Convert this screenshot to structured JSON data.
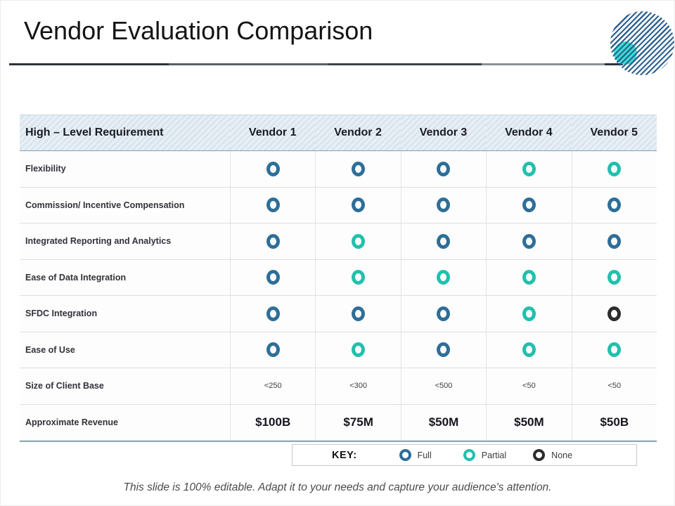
{
  "slide": {
    "title": "Vendor Evaluation Comparison",
    "footer": "This slide is 100% editable. Adapt it to your needs and capture your audience's attention."
  },
  "colors": {
    "full": "#2e6e99",
    "partial": "#21c0ad",
    "none": "#2d2d2d",
    "accent_stripe_blue": "#2e6190",
    "accent_teal": "#37e0d3",
    "header_bg": "#dde8f0"
  },
  "table": {
    "header": [
      "High – Level Requirement",
      "Vendor 1",
      "Vendor 2",
      "Vendor 3",
      "Vendor 4",
      "Vendor 5"
    ],
    "rows": [
      {
        "label": "Flexibility",
        "type": "rating",
        "values": [
          "full",
          "full",
          "full",
          "partial",
          "partial"
        ]
      },
      {
        "label": "Commission/ Incentive Compensation",
        "type": "rating",
        "values": [
          "full",
          "full",
          "full",
          "full",
          "full"
        ]
      },
      {
        "label": "Integrated Reporting and Analytics",
        "type": "rating",
        "values": [
          "full",
          "partial",
          "full",
          "full",
          "full"
        ]
      },
      {
        "label": "Ease of Data Integration",
        "type": "rating",
        "values": [
          "full",
          "partial",
          "partial",
          "partial",
          "partial"
        ]
      },
      {
        "label": "SFDC Integration",
        "type": "rating",
        "values": [
          "full",
          "full",
          "full",
          "partial",
          "none"
        ]
      },
      {
        "label": "Ease of Use",
        "type": "rating",
        "values": [
          "full",
          "partial",
          "full",
          "partial",
          "partial"
        ]
      },
      {
        "label": "Size of Client Base",
        "type": "size",
        "values": [
          "<250",
          "<300",
          "<500",
          "<50",
          "<50"
        ]
      },
      {
        "label": "Approximate Revenue",
        "type": "revenue",
        "values": [
          "$100B",
          "$75M",
          "$50M",
          "$50M",
          "$50B"
        ]
      }
    ]
  },
  "key": {
    "label": "KEY:",
    "items": [
      {
        "name": "Full",
        "color_key": "full"
      },
      {
        "name": "Partial",
        "color_key": "partial"
      },
      {
        "name": "None",
        "color_key": "none"
      }
    ]
  }
}
